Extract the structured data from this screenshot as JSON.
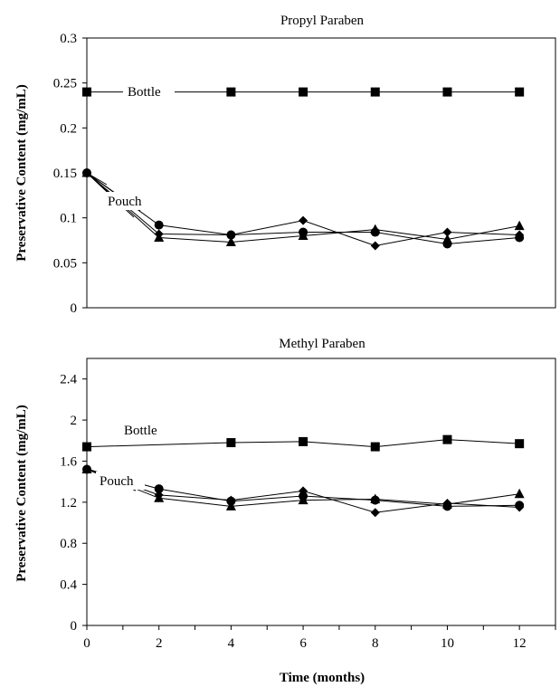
{
  "chart_data": [
    {
      "type": "line",
      "title": "Propyl Paraben",
      "ylabel": "Preservative Content (mg/mL)",
      "xlabel": "",
      "xlim": [
        0,
        13
      ],
      "ylim": [
        0,
        0.3
      ],
      "yticks": [
        "0",
        "0.05",
        "0.1",
        "0.15",
        "0.2",
        "0.25",
        "0.3"
      ],
      "grid": false,
      "annotations": [
        "Bottle",
        "Pouch"
      ],
      "series": [
        {
          "marker": "square",
          "x": [
            0,
            4,
            6,
            8,
            10,
            12
          ],
          "y": [
            0.24,
            0.24,
            0.24,
            0.24,
            0.24,
            0.24
          ]
        },
        {
          "marker": "circle",
          "x": [
            0,
            2,
            4,
            6,
            8,
            10,
            12
          ],
          "y": [
            0.15,
            0.092,
            0.081,
            0.084,
            0.084,
            0.071,
            0.078
          ]
        },
        {
          "marker": "diamond",
          "x": [
            0,
            2,
            4,
            6,
            8,
            10,
            12
          ],
          "y": [
            0.15,
            0.082,
            0.081,
            0.097,
            0.069,
            0.084,
            0.081
          ]
        },
        {
          "marker": "triangle",
          "x": [
            0,
            2,
            4,
            6,
            8,
            10,
            12
          ],
          "y": [
            0.15,
            0.078,
            0.073,
            0.08,
            0.087,
            0.076,
            0.091
          ]
        }
      ]
    },
    {
      "type": "line",
      "title": "Methyl Paraben",
      "ylabel": "Preservative Content (mg/mL)",
      "xlabel": "Time (months)",
      "xlim": [
        0,
        13
      ],
      "ylim": [
        0,
        2.6
      ],
      "yticks": [
        "0",
        "0.4",
        "0.8",
        "1.2",
        "1.6",
        "2",
        "2.4"
      ],
      "xticks": [
        "0",
        "2",
        "4",
        "6",
        "8",
        "10",
        "12"
      ],
      "grid": false,
      "annotations": [
        "Bottle",
        "Pouch"
      ],
      "series": [
        {
          "marker": "square",
          "x": [
            0,
            4,
            6,
            8,
            10,
            12
          ],
          "y": [
            1.74,
            1.78,
            1.79,
            1.74,
            1.81,
            1.77
          ]
        },
        {
          "marker": "circle",
          "x": [
            0,
            2,
            4,
            6,
            8,
            10,
            12
          ],
          "y": [
            1.52,
            1.33,
            1.21,
            1.26,
            1.22,
            1.16,
            1.17
          ]
        },
        {
          "marker": "diamond",
          "x": [
            0,
            2,
            4,
            6,
            8,
            10,
            12
          ],
          "y": [
            1.52,
            1.27,
            1.22,
            1.31,
            1.1,
            1.19,
            1.15
          ]
        },
        {
          "marker": "triangle",
          "x": [
            0,
            2,
            4,
            6,
            8,
            10,
            12
          ],
          "y": [
            1.52,
            1.24,
            1.16,
            1.22,
            1.23,
            1.18,
            1.28
          ]
        }
      ]
    }
  ]
}
